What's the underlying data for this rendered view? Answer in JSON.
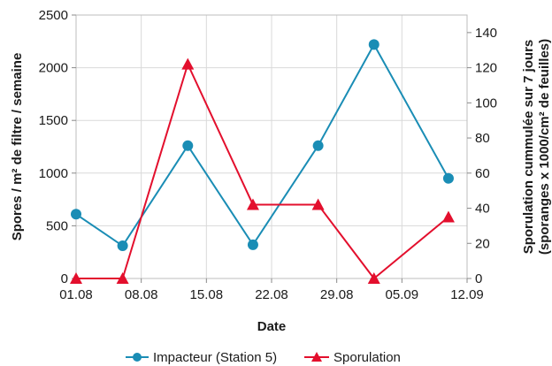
{
  "chart_data": {
    "type": "line",
    "title": "",
    "xlabel": "Date",
    "ylabel_left": "Spores / m² de filtre / semaine",
    "ylabel_right_line1": "Sporulation cummulée sur 7 jours",
    "ylabel_right_line2": "(sporanges x 1000/cm² de feuilles)",
    "x_ticks": [
      "01.08",
      "08.08",
      "15.08",
      "22.08",
      "29.08",
      "05.09",
      "12.09"
    ],
    "x_range_days": [
      0,
      42
    ],
    "y_left_ticks": [
      "0",
      "500",
      "1000",
      "1500",
      "2000",
      "2500"
    ],
    "y_left_range": [
      0,
      2500
    ],
    "y_right_ticks": [
      "0",
      "20",
      "40",
      "60",
      "80",
      "100",
      "120",
      "140"
    ],
    "y_right_range": [
      0,
      150
    ],
    "grid": true,
    "legend_position": "bottom",
    "series": [
      {
        "name": "Impacteur (Station 5)",
        "axis": "left",
        "color": "#1a8db5",
        "marker": "circle",
        "x": [
          "01.08",
          "06.08",
          "13.08",
          "20.08",
          "27.08",
          "02.09",
          "10.09"
        ],
        "values": [
          610,
          310,
          1260,
          320,
          1260,
          2220,
          950
        ]
      },
      {
        "name": "Sporulation",
        "axis": "right",
        "color": "#e30f2d",
        "marker": "triangle",
        "x": [
          "01.08",
          "06.08",
          "13.08",
          "20.08",
          "27.08",
          "02.09",
          "10.09"
        ],
        "values": [
          0,
          0,
          122,
          42,
          42,
          0,
          35
        ]
      }
    ]
  }
}
